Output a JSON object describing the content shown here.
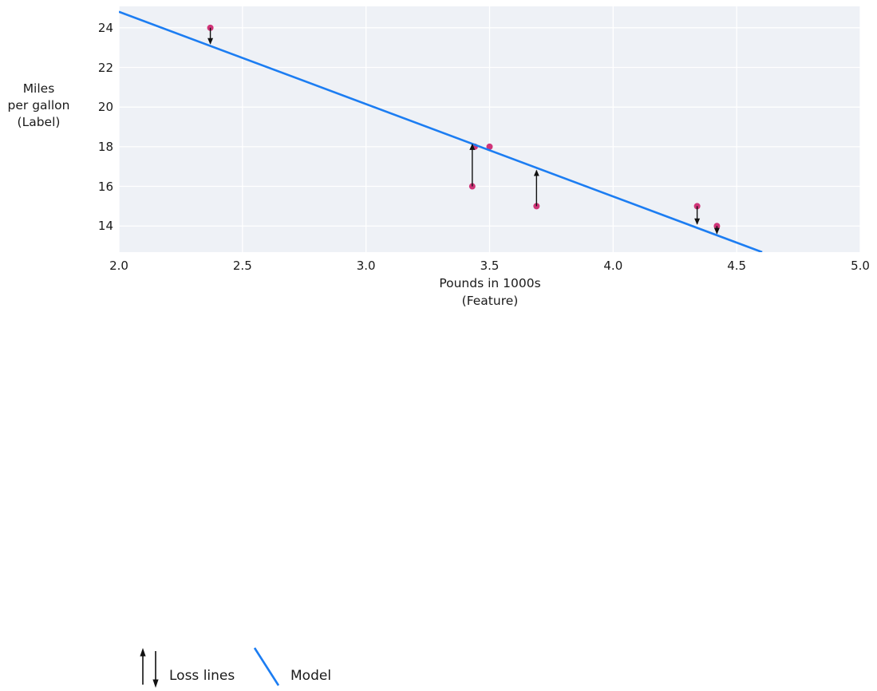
{
  "chart_data": {
    "type": "scatter",
    "title": "",
    "xlabel_lines": [
      "Pounds in 1000s",
      "(Feature)"
    ],
    "ylabel_lines": [
      "Miles",
      "per gallon",
      "(Label)"
    ],
    "xlim": [
      2.0,
      5.0
    ],
    "ylim": [
      12.68,
      25.08
    ],
    "grid": true,
    "legend_position": "bottom-left",
    "x_ticks": [
      2.0,
      2.5,
      3.0,
      3.5,
      4.0,
      4.5,
      5.0
    ],
    "x_tick_labels": [
      "2.0",
      "2.5",
      "3.0",
      "3.5",
      "4.0",
      "4.5",
      "5.0"
    ],
    "y_ticks": [
      14,
      16,
      18,
      20,
      22,
      24
    ],
    "y_tick_labels": [
      "14",
      "16",
      "18",
      "20",
      "22",
      "24"
    ],
    "points": [
      {
        "x": 2.37,
        "y": 24
      },
      {
        "x": 3.44,
        "y": 18
      },
      {
        "x": 3.5,
        "y": 18
      },
      {
        "x": 3.43,
        "y": 16
      },
      {
        "x": 3.69,
        "y": 15
      },
      {
        "x": 4.34,
        "y": 15
      },
      {
        "x": 4.42,
        "y": 14
      }
    ],
    "model_line": {
      "slope": -4.66,
      "intercept": 34.13,
      "x_start": 2.0,
      "x_end": 4.603
    },
    "loss_lines": [
      {
        "x": 2.37,
        "from_y": 24,
        "to_y": 23.2,
        "direction": "down"
      },
      {
        "x": 3.43,
        "from_y": 16,
        "to_y": 18.12,
        "direction": "up"
      },
      {
        "x": 3.69,
        "from_y": 15,
        "to_y": 16.8,
        "direction": "up"
      },
      {
        "x": 4.34,
        "from_y": 15,
        "to_y": 14.1,
        "direction": "down"
      },
      {
        "x": 4.42,
        "from_y": 14,
        "to_y": 13.62,
        "direction": "down"
      }
    ],
    "legend": {
      "loss_label": "Loss lines",
      "model_label": "Model"
    },
    "colors": {
      "model_line": "#1c7df2",
      "points": "#d03478",
      "loss_arrows": "#111111",
      "plot_bg": "#eef1f6",
      "grid": "#ffffff",
      "text": "#1a1a1a"
    }
  }
}
